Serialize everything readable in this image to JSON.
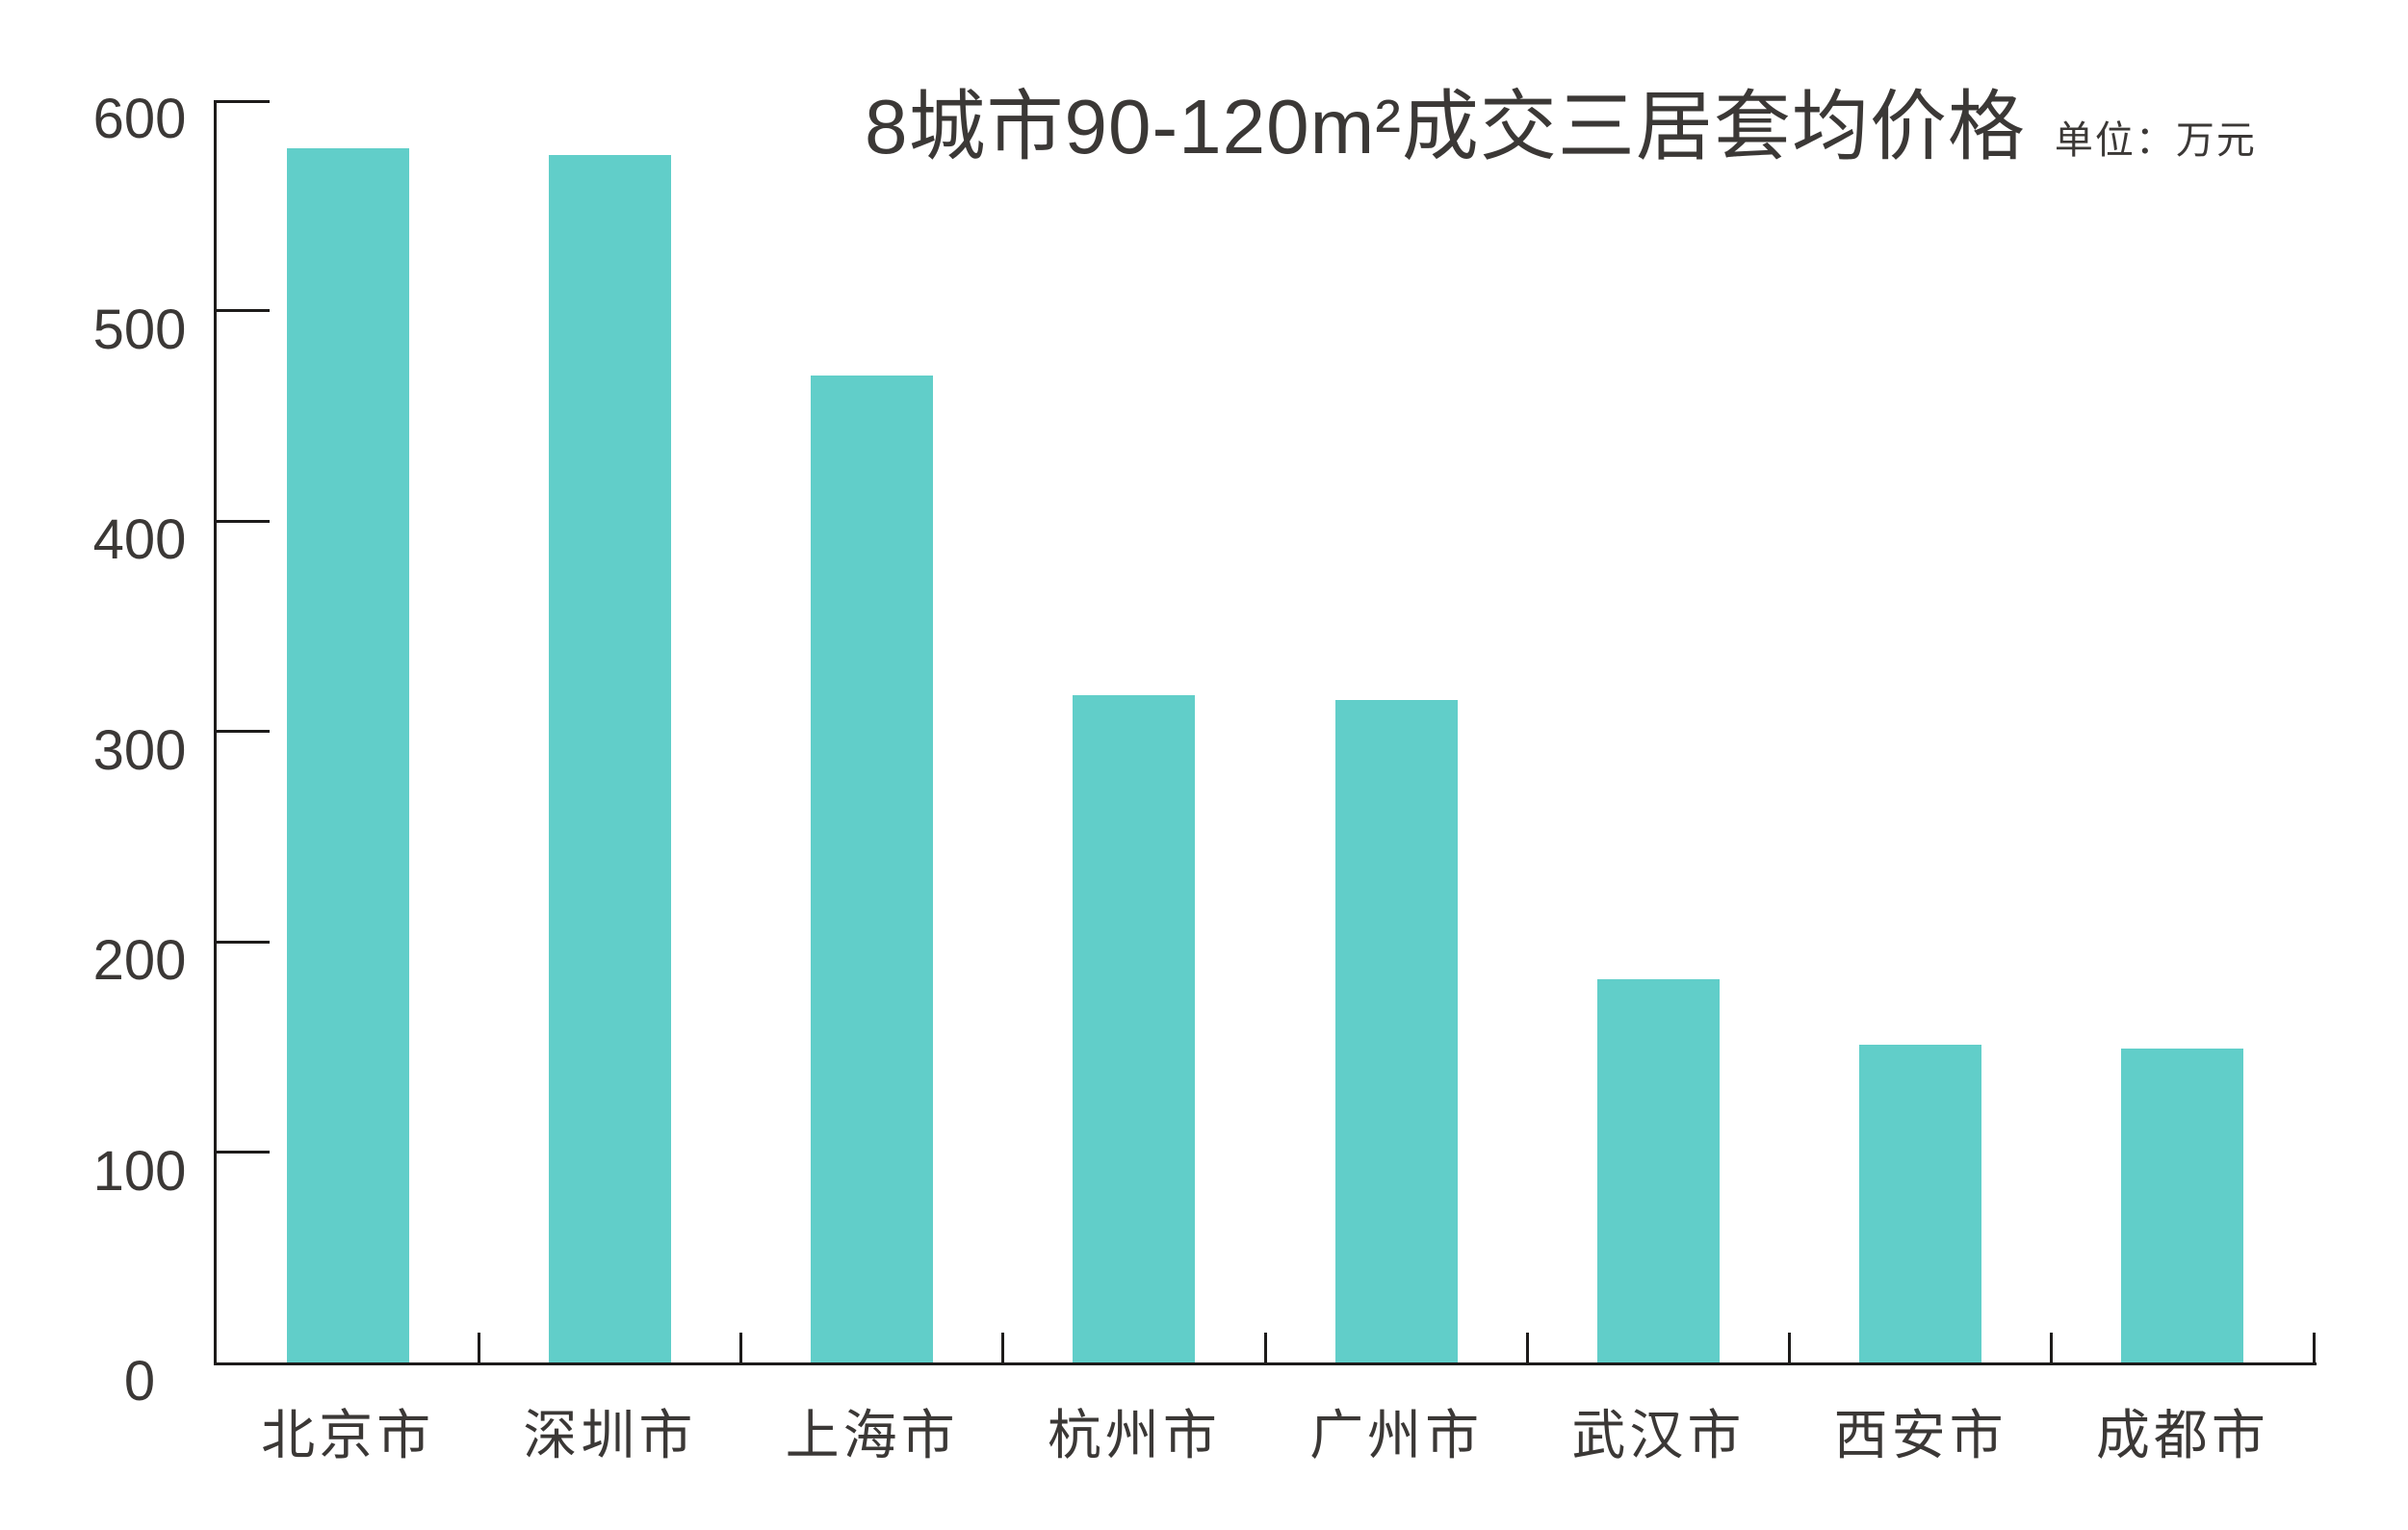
{
  "chart_data": {
    "type": "bar",
    "title": "8城市90-120m²成交三居套均价格",
    "unit_label": "单位：万元",
    "categories": [
      "北京市",
      "深圳市",
      "上海市",
      "杭州市",
      "广州市",
      "武汉市",
      "西安市",
      "成都市"
    ],
    "values": [
      577,
      574,
      469,
      317,
      315,
      182,
      151,
      149
    ],
    "xlabel": "",
    "ylabel": "",
    "ylim": [
      0,
      600
    ],
    "yticks": [
      0,
      100,
      200,
      300,
      400,
      500,
      600
    ],
    "grid": false,
    "legend": "none",
    "bar_color": "#61cec9",
    "axis_color": "#1d1b1a",
    "text_color": "#3b3836",
    "background_color": "#ffffff"
  }
}
